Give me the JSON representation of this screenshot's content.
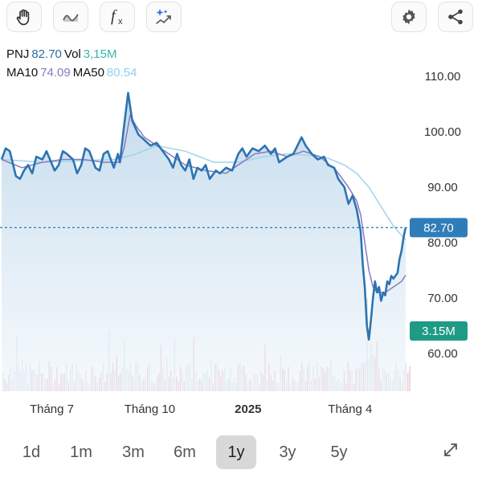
{
  "toolbar": {
    "left_buttons": [
      {
        "icon": "hand-icon"
      },
      {
        "icon": "wave-line-icon"
      },
      {
        "icon": "function-icon",
        "text": "f",
        "subscript": "x"
      },
      {
        "icon": "sparkle-trend-icon"
      }
    ],
    "right_buttons": [
      {
        "icon": "gear-icon"
      },
      {
        "icon": "share-icon"
      }
    ]
  },
  "info": {
    "ticker": "PNJ",
    "price": "82.70",
    "vol_label": "Vol",
    "vol_value": "3,15M",
    "ma10_label": "MA10",
    "ma10_value": "74.09",
    "ma50_label": "MA50",
    "ma50_value": "80.54"
  },
  "price_tag": "82.70",
  "volume_tag": "3.15M",
  "colors": {
    "price_line": "#2b74b2",
    "price_tag_bg": "#2e7db8",
    "volume_tag_bg": "#1f9a86",
    "ma10": "#8a78c0",
    "ma50": "#9fd3ec",
    "volume_bars": "#f1c7cf"
  },
  "chart_data": {
    "type": "line",
    "y_ticks": [
      "110.00",
      "100.00",
      "90.00",
      "80.00",
      "70.00",
      "60.00"
    ],
    "ylim": [
      53,
      113
    ],
    "x_ticks": [
      {
        "label": "Tháng 7",
        "t": 0.123,
        "bold": false
      },
      {
        "label": "Tháng 10",
        "t": 0.363,
        "bold": false
      },
      {
        "label": "2025",
        "t": 0.604,
        "bold": true
      },
      {
        "label": "Tháng 4",
        "t": 0.854,
        "bold": false
      }
    ],
    "last_price": 82.7,
    "series": [
      {
        "name": "PNJ",
        "points": [
          [
            0,
            95
          ],
          [
            0.01,
            97
          ],
          [
            0.02,
            96.5
          ],
          [
            0.035,
            92
          ],
          [
            0.045,
            91.5
          ],
          [
            0.055,
            93
          ],
          [
            0.065,
            94
          ],
          [
            0.075,
            92.5
          ],
          [
            0.085,
            95.5
          ],
          [
            0.1,
            95
          ],
          [
            0.11,
            96.5
          ],
          [
            0.13,
            93
          ],
          [
            0.14,
            94
          ],
          [
            0.15,
            96.5
          ],
          [
            0.16,
            96
          ],
          [
            0.175,
            95
          ],
          [
            0.185,
            92.5
          ],
          [
            0.195,
            94
          ],
          [
            0.205,
            97
          ],
          [
            0.215,
            96.5
          ],
          [
            0.23,
            93.5
          ],
          [
            0.24,
            93
          ],
          [
            0.25,
            96
          ],
          [
            0.26,
            96.5
          ],
          [
            0.275,
            93.5
          ],
          [
            0.285,
            96
          ],
          [
            0.29,
            94.5
          ],
          [
            0.3,
            101
          ],
          [
            0.31,
            107
          ],
          [
            0.32,
            102
          ],
          [
            0.335,
            99.5
          ],
          [
            0.35,
            98.5
          ],
          [
            0.365,
            97.5
          ],
          [
            0.38,
            98
          ],
          [
            0.4,
            96
          ],
          [
            0.41,
            95
          ],
          [
            0.42,
            93.5
          ],
          [
            0.43,
            96
          ],
          [
            0.44,
            94
          ],
          [
            0.45,
            93
          ],
          [
            0.46,
            95
          ],
          [
            0.47,
            91.5
          ],
          [
            0.48,
            93.5
          ],
          [
            0.49,
            93
          ],
          [
            0.5,
            94
          ],
          [
            0.51,
            91.5
          ],
          [
            0.525,
            93
          ],
          [
            0.535,
            92.5
          ],
          [
            0.55,
            93.5
          ],
          [
            0.565,
            93
          ],
          [
            0.58,
            96
          ],
          [
            0.59,
            97
          ],
          [
            0.6,
            95.5
          ],
          [
            0.615,
            97
          ],
          [
            0.63,
            96.5
          ],
          [
            0.645,
            97.5
          ],
          [
            0.66,
            96
          ],
          [
            0.67,
            97
          ],
          [
            0.68,
            94.5
          ],
          [
            0.69,
            95
          ],
          [
            0.7,
            95.5
          ],
          [
            0.715,
            96
          ],
          [
            0.725,
            97.5
          ],
          [
            0.735,
            99
          ],
          [
            0.745,
            97.5
          ],
          [
            0.76,
            96
          ],
          [
            0.775,
            95
          ],
          [
            0.79,
            95.5
          ],
          [
            0.8,
            94
          ],
          [
            0.815,
            93.5
          ],
          [
            0.825,
            91.5
          ],
          [
            0.84,
            90
          ],
          [
            0.85,
            87
          ],
          [
            0.86,
            88.5
          ],
          [
            0.87,
            86
          ],
          [
            0.88,
            82
          ],
          [
            0.885,
            76
          ],
          [
            0.89,
            72
          ],
          [
            0.895,
            65
          ],
          [
            0.9,
            62.5
          ],
          [
            0.905,
            66
          ],
          [
            0.91,
            70
          ],
          [
            0.915,
            73
          ],
          [
            0.92,
            71
          ],
          [
            0.925,
            72
          ],
          [
            0.93,
            69.5
          ],
          [
            0.935,
            71
          ],
          [
            0.94,
            70.5
          ],
          [
            0.945,
            73
          ],
          [
            0.95,
            72.5
          ],
          [
            0.955,
            74
          ],
          [
            0.96,
            73.5
          ],
          [
            0.97,
            74.5
          ],
          [
            0.975,
            77
          ],
          [
            0.98,
            78.5
          ],
          [
            0.985,
            81
          ],
          [
            0.99,
            82.7
          ]
        ]
      },
      {
        "name": "MA10",
        "points": [
          [
            0,
            95
          ],
          [
            0.05,
            93.5
          ],
          [
            0.1,
            94.5
          ],
          [
            0.15,
            95
          ],
          [
            0.2,
            95
          ],
          [
            0.25,
            94.5
          ],
          [
            0.29,
            94.5
          ],
          [
            0.3,
            97
          ],
          [
            0.315,
            103
          ],
          [
            0.33,
            101
          ],
          [
            0.35,
            99
          ],
          [
            0.38,
            97.5
          ],
          [
            0.41,
            96
          ],
          [
            0.45,
            94
          ],
          [
            0.5,
            93
          ],
          [
            0.55,
            92.5
          ],
          [
            0.58,
            94
          ],
          [
            0.62,
            96
          ],
          [
            0.66,
            96.5
          ],
          [
            0.7,
            95.5
          ],
          [
            0.74,
            96.5
          ],
          [
            0.78,
            95.5
          ],
          [
            0.82,
            93
          ],
          [
            0.85,
            90
          ],
          [
            0.87,
            87.5
          ],
          [
            0.88,
            85
          ],
          [
            0.89,
            80
          ],
          [
            0.9,
            75
          ],
          [
            0.91,
            72
          ],
          [
            0.92,
            71
          ],
          [
            0.94,
            71
          ],
          [
            0.96,
            72
          ],
          [
            0.98,
            73
          ],
          [
            0.99,
            74.1
          ]
        ]
      },
      {
        "name": "MA50",
        "points": [
          [
            0,
            95
          ],
          [
            0.1,
            94.5
          ],
          [
            0.2,
            94.8
          ],
          [
            0.28,
            95
          ],
          [
            0.33,
            96
          ],
          [
            0.38,
            97.5
          ],
          [
            0.45,
            96.5
          ],
          [
            0.52,
            94.5
          ],
          [
            0.58,
            94.5
          ],
          [
            0.64,
            95.5
          ],
          [
            0.7,
            96
          ],
          [
            0.76,
            95.7
          ],
          [
            0.8,
            95.2
          ],
          [
            0.84,
            94
          ],
          [
            0.87,
            92.5
          ],
          [
            0.9,
            90
          ],
          [
            0.93,
            86.5
          ],
          [
            0.96,
            83
          ],
          [
            0.99,
            80.5
          ]
        ]
      }
    ]
  },
  "ranges": {
    "items": [
      "1d",
      "1m",
      "3m",
      "6m",
      "1y",
      "3y",
      "5y"
    ],
    "active": "1y"
  }
}
